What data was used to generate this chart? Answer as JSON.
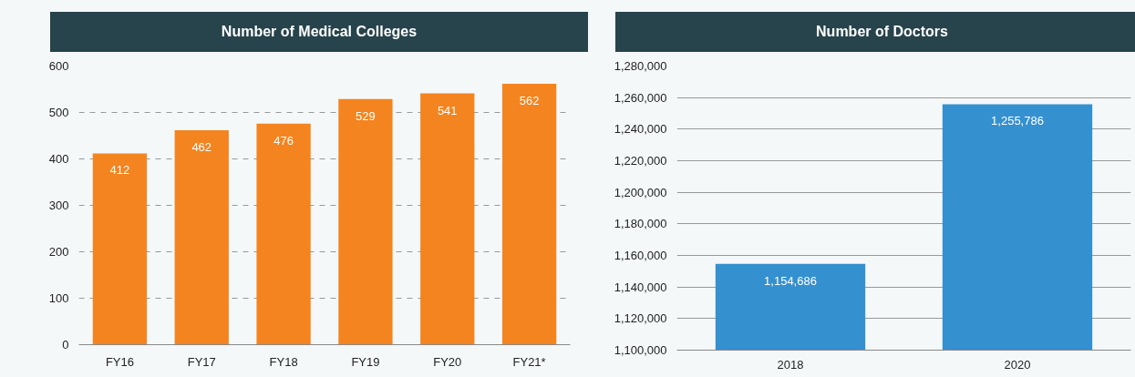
{
  "chart_data": [
    {
      "type": "bar",
      "title": "Number of Medical Colleges",
      "categories": [
        "FY16",
        "FY17",
        "FY18",
        "FY19",
        "FY20",
        "FY21*"
      ],
      "values": [
        412,
        462,
        476,
        529,
        541,
        562
      ],
      "color": "#f4841f",
      "ylim": [
        0,
        600
      ],
      "yticks": [
        0,
        100,
        200,
        300,
        400,
        500,
        600
      ],
      "grid": "y",
      "data_labels": true
    },
    {
      "type": "bar",
      "title": "Number of Doctors",
      "categories": [
        "2018",
        "2020"
      ],
      "values": [
        1154686,
        1255786
      ],
      "color": "#3590cf",
      "ylim": [
        1100000,
        1280000
      ],
      "yticks": [
        {
          "value": 1100000,
          "label": "1,100,000"
        },
        {
          "value": 1120000,
          "label": "1,120,000"
        },
        {
          "value": 1140000,
          "label": "1,140,000"
        },
        {
          "value": 1160000,
          "label": "1,160,000"
        },
        {
          "value": 1180000,
          "label": "1,180,000"
        },
        {
          "value": 1200000,
          "label": "1,200,000"
        },
        {
          "value": 1220000,
          "label": "1,220,000"
        },
        {
          "value": 1240000,
          "label": "1,240,000"
        },
        {
          "value": 1260000,
          "label": "1,260,000"
        },
        {
          "value": 1280000,
          "label": "1,280,000"
        }
      ],
      "grid": "y",
      "value_labels": [
        "1,154,686",
        "1,255,786"
      ]
    }
  ]
}
